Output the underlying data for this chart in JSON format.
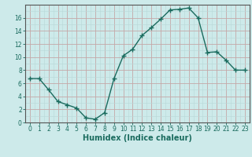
{
  "x": [
    0,
    1,
    2,
    3,
    4,
    5,
    6,
    7,
    8,
    9,
    10,
    11,
    12,
    13,
    14,
    15,
    16,
    17,
    18,
    19,
    20,
    21,
    22,
    23
  ],
  "y": [
    6.7,
    6.7,
    5.0,
    3.2,
    2.7,
    2.2,
    0.7,
    0.5,
    1.5,
    6.7,
    10.2,
    11.2,
    13.3,
    14.5,
    15.8,
    17.2,
    17.3,
    17.5,
    16.0,
    10.7,
    10.8,
    9.5,
    8.0,
    8.0
  ],
  "line_color": "#1a6b5e",
  "marker": "+",
  "marker_size": 4,
  "bg_color": "#cdeaea",
  "grid_major_color": "#c4a8a8",
  "grid_minor_color": "#b8d8d8",
  "xlabel": "Humidex (Indice chaleur)",
  "xlim": [
    -0.5,
    23.5
  ],
  "ylim": [
    0,
    18
  ],
  "yticks": [
    0,
    2,
    4,
    6,
    8,
    10,
    12,
    14,
    16
  ],
  "xticks": [
    0,
    1,
    2,
    3,
    4,
    5,
    6,
    7,
    8,
    9,
    10,
    11,
    12,
    13,
    14,
    15,
    16,
    17,
    18,
    19,
    20,
    21,
    22,
    23
  ],
  "font_color": "#1a6b5e",
  "axis_color": "#555555",
  "xlabel_fontsize": 7,
  "tick_fontsize": 5.5,
  "linewidth": 1.0
}
